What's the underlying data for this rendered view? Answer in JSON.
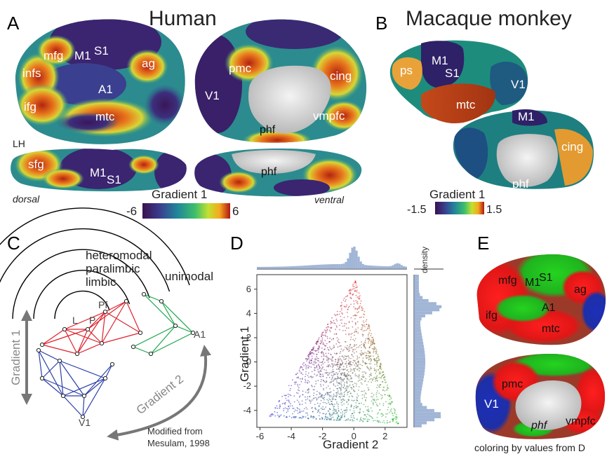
{
  "panels": {
    "A": {
      "letter": "A",
      "title": "Human",
      "hemisphere": "LH",
      "lateral_labels": [
        "mfg",
        "M1",
        "S1",
        "infs",
        "ag",
        "ifg",
        "A1",
        "mtc"
      ],
      "medial_labels": [
        "pmc",
        "V1",
        "cing",
        "phf",
        "vmpfc"
      ],
      "dorsal_labels": [
        "sfg",
        "M1",
        "S1"
      ],
      "ventral_labels": [
        "phf"
      ],
      "view_dorsal": "dorsal",
      "view_ventral": "ventral",
      "colorbar": {
        "title": "Gradient 1",
        "min": "-6",
        "max": "6"
      }
    },
    "B": {
      "letter": "B",
      "title": "Macaque monkey",
      "lateral_labels": [
        "ps",
        "M1",
        "S1",
        "V1",
        "mtc"
      ],
      "medial_labels": [
        "M1",
        "cing",
        "phf"
      ],
      "colorbar": {
        "title": "Gradient 1",
        "min": "-1.5",
        "max": "1.5"
      }
    },
    "C": {
      "letter": "C",
      "ring_labels": [
        "heteromodal",
        "paralimbic",
        "limbic",
        "unimodal"
      ],
      "node_labels": [
        "Pf",
        "L",
        "P",
        "A1",
        "V1"
      ],
      "arrow1": "Gradient 1",
      "arrow2": "Gradient 2",
      "credit_line1": "Modified from",
      "credit_line2": "Mesulam, 1998",
      "colors": {
        "red": "#e0212b",
        "green": "#1aa34a",
        "blue": "#2b3fa8"
      }
    },
    "D": {
      "letter": "D",
      "xlabel": "Gradient 2",
      "ylabel": "Gradient 1",
      "density_label": "density"
    },
    "E": {
      "letter": "E",
      "lateral_labels": [
        "mfg",
        "M1",
        "S1",
        "ag",
        "ifg",
        "A1",
        "mtc"
      ],
      "medial_labels": [
        "pmc",
        "V1",
        "phf",
        "vmpfc"
      ],
      "caption": "coloring by values from D"
    }
  },
  "chart_data": {
    "type": "scatter",
    "xlabel": "Gradient 2",
    "ylabel": "Gradient 1",
    "xticks": [
      -6,
      -4,
      -2,
      0,
      2
    ],
    "yticks": [
      6,
      4,
      2,
      0,
      -2,
      -4
    ],
    "xlim": [
      -6.2,
      3.4
    ],
    "ylim": [
      -5.4,
      7.2
    ],
    "vertices": [
      {
        "name": "apex",
        "x": 0.1,
        "y": 6.7,
        "color": "#e8141c"
      },
      {
        "name": "left",
        "x": -5.4,
        "y": -4.5,
        "color": "#1b20d8"
      },
      {
        "name": "right",
        "x": 2.9,
        "y": -5.1,
        "color": "#16c21e"
      }
    ],
    "marginal_top": "histogram of Gradient 2, peak near 0",
    "marginal_right": "histogram of Gradient 1, peaks near -4.5 and 4.5"
  }
}
